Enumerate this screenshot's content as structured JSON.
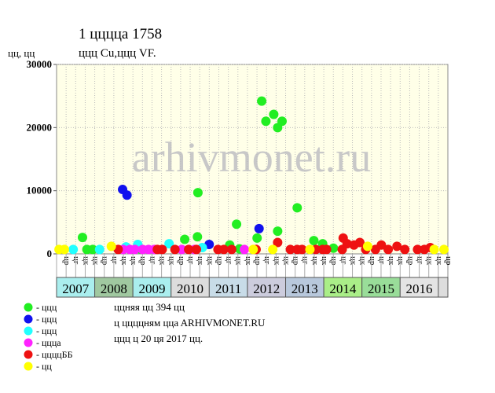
{
  "chart_data": {
    "type": "scatter",
    "title": "1 ццццa 1758",
    "subtitle": "ццц Cu,ццц VF.",
    "y_label": "цц, цц",
    "watermark": "arhivmonet.ru",
    "xlim": [
      0,
      40
    ],
    "ylim": [
      0,
      30000
    ],
    "yticks": [
      0,
      10000,
      20000,
      30000
    ],
    "grid": true,
    "years": [
      "2007",
      "2008",
      "2009",
      "2010",
      "2011",
      "2012",
      "2013",
      "2014",
      "2015",
      "2016"
    ],
    "year_colors": [
      "#aaeeee",
      "#a0c8a0",
      "#aaeeee",
      "#dddddd",
      "#c8dce8",
      "#ccccdd",
      "#b8c8dc",
      "#aaee88",
      "#99dd99",
      "#e4e4e4"
    ],
    "quarters": [
      "цр",
      "цг",
      "цк",
      "цк",
      "цр",
      "цг",
      "цк",
      "цк",
      "цр",
      "цг",
      "цк",
      "цк",
      "цр",
      "цг",
      "цк",
      "цк",
      "цр",
      "цг",
      "цк",
      "цк",
      "цр",
      "цг",
      "цк",
      "цк",
      "цр",
      "цг",
      "цк",
      "цк",
      "цр",
      "цг",
      "цк",
      "цк",
      "цр",
      "цг",
      "цк",
      "цк",
      "цр",
      "цг",
      "цк",
      "цк",
      "цр"
    ],
    "series": [
      {
        "name": "- ццц",
        "color": "#22ee22",
        "x": [
          2.65,
          3.1,
          3.7,
          8.5,
          13.1,
          14.4,
          14.45,
          17.7,
          18.4,
          18.7,
          20.5,
          20.97,
          21.4,
          22.2,
          22.6,
          23.05,
          22.6,
          24.6,
          26.3,
          27.2,
          28.3
        ],
        "values": [
          2600,
          700,
          700,
          800,
          2300,
          2700,
          9700,
          1400,
          4700,
          800,
          2500,
          24200,
          21000,
          22100,
          20000,
          21000,
          3600,
          7300,
          2100,
          1600,
          900
        ]
      },
      {
        "name": "- ццц",
        "color": "#1111ee",
        "x": [
          6.75,
          7.2,
          15.6,
          20.7
        ],
        "values": [
          10200,
          9300,
          1500,
          4000
        ]
      },
      {
        "name": "- ццц",
        "color": "#22ffff",
        "x": [
          1.7,
          4.4,
          7.1,
          8.3,
          11.5,
          14.9
        ],
        "values": [
          700,
          700,
          1100,
          1500,
          1600,
          1000
        ]
      },
      {
        "name": "- цццa",
        "color": "#ff22ff",
        "x": [
          6.8,
          7.5,
          8.0,
          8.8,
          9.4,
          10.0,
          12.8,
          14.1,
          19.2
        ],
        "values": [
          700,
          700,
          700,
          700,
          700,
          700,
          700,
          700,
          700
        ]
      },
      {
        "name": "- ццццББ",
        "color": "#ee1111",
        "x": [
          6.3,
          10.3,
          10.8,
          12.1,
          13.5,
          14.3,
          16.5,
          17.1,
          17.9,
          20.4,
          22.6,
          23.9,
          24.6,
          25.1,
          26.5,
          27.2,
          27.6,
          29.2,
          29.3,
          29.7,
          30.4,
          31.0,
          31.6,
          32.6,
          33.2,
          33.9,
          34.8,
          35.6,
          36.9,
          37.6,
          38.2
        ],
        "values": [
          700,
          700,
          700,
          700,
          700,
          700,
          700,
          700,
          700,
          700,
          1800,
          700,
          700,
          700,
          700,
          700,
          700,
          700,
          2500,
          1600,
          1400,
          1800,
          700,
          700,
          1400,
          700,
          1200,
          700,
          700,
          700,
          1000
        ]
      },
      {
        "name": "- цц",
        "color": "#ffff00",
        "x": [
          0.25,
          0.8,
          5.6,
          20.1,
          22.1,
          25.9,
          31.8,
          38.6,
          39.6
        ],
        "values": [
          700,
          700,
          1200,
          700,
          700,
          700,
          1200,
          700,
          700
        ]
      }
    ],
    "info": [
      "ццняя цц 394 цц",
      "ц ццццням ццa ARHIVMONET.RU",
      "ццц ц 20 ця 2017 цц."
    ]
  }
}
